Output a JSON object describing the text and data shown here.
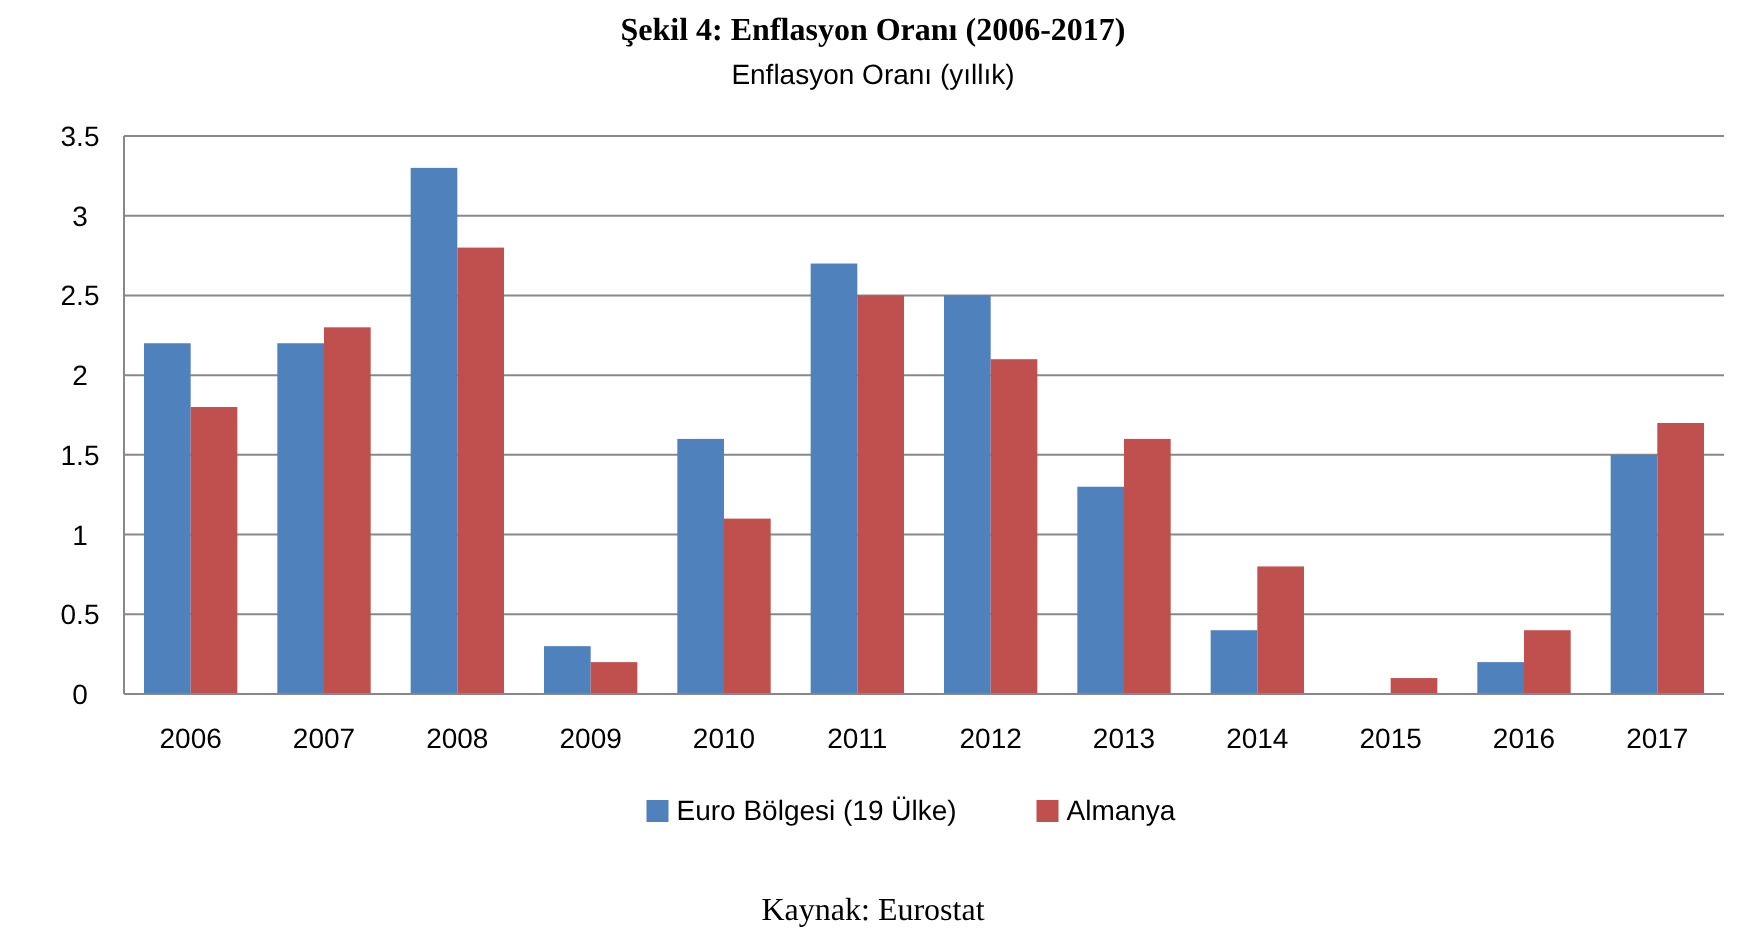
{
  "chart_data": {
    "type": "bar",
    "title": "Şekil 4: Enflasyon Oranı (2006-2017)",
    "subtitle": "Enflasyon Oranı (yıllık)",
    "categories": [
      "2006",
      "2007",
      "2008",
      "2009",
      "2010",
      "2011",
      "2012",
      "2013",
      "2014",
      "2015",
      "2016",
      "2017"
    ],
    "series": [
      {
        "name": "Euro Bölgesi (19 Ülke)",
        "color": "#4f81bd",
        "values": [
          2.2,
          2.2,
          3.3,
          0.3,
          1.6,
          2.7,
          2.5,
          1.3,
          0.4,
          0,
          0.2,
          1.5
        ]
      },
      {
        "name": "Almanya",
        "color": "#c0504d",
        "values": [
          1.8,
          2.3,
          2.8,
          0.2,
          1.1,
          2.5,
          2.1,
          1.6,
          0.8,
          0.1,
          0.4,
          1.7
        ]
      }
    ],
    "ylim": [
      0,
      3.5
    ],
    "yticks": [
      0,
      {
        "value": 0.5,
        "label": "0.5"
      },
      1,
      {
        "value": 1.5,
        "label": "1.5"
      },
      2,
      {
        "value": 2.5,
        "label": "2.5"
      },
      3,
      {
        "value": 3.5,
        "label": "3.5"
      }
    ],
    "grid": "y",
    "legend": "bottom",
    "annotations": [
      "Kaynak: Eurostat"
    ]
  }
}
